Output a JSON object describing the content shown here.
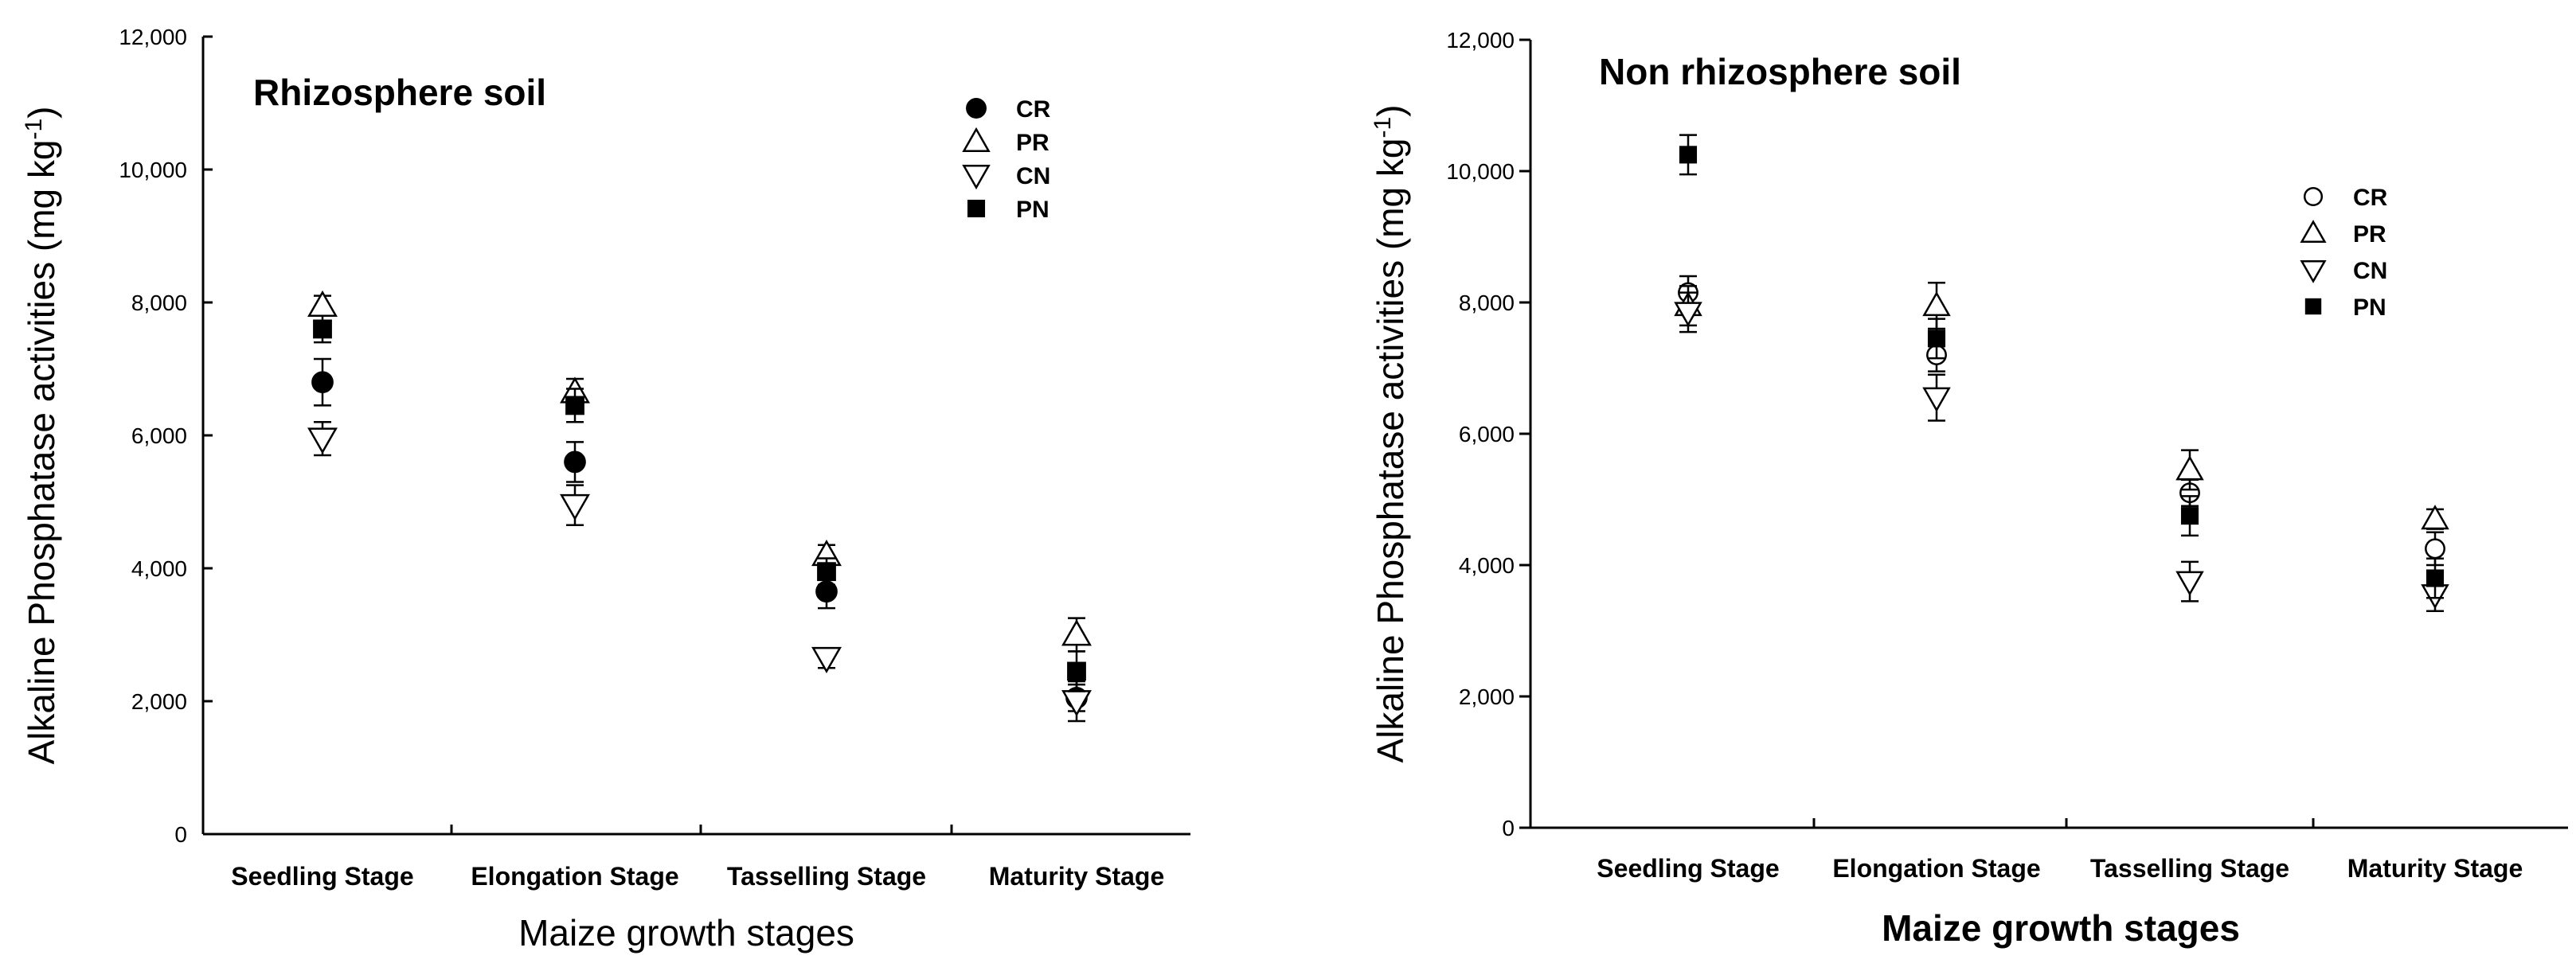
{
  "chart_data": [
    {
      "type": "scatter",
      "title": "Rhizosphere soil",
      "xlabel": "Maize growth stages",
      "ylabel_main": "Alkaline Phosphatase activities (mg kg",
      "ylabel_sup": "-1",
      "ylabel_end": ")",
      "ylim": [
        0,
        12000
      ],
      "yticks": [
        "0",
        "2,000",
        "4,000",
        "6,000",
        "8,000",
        "10,000",
        "12,000"
      ],
      "categories": [
        "Seedling Stage",
        "Elongation Stage",
        "Tasselling Stage",
        "Maturity Stage"
      ],
      "legend_position": "top-right",
      "series": [
        {
          "name": "CR",
          "marker": "filled-circle",
          "values": [
            6800,
            5600,
            3650,
            2050
          ],
          "errors": [
            350,
            300,
            250,
            200
          ]
        },
        {
          "name": "PR",
          "marker": "open-triangle-up",
          "values": [
            7950,
            6650,
            4200,
            3000
          ],
          "errors": [
            150,
            200,
            150,
            250
          ]
        },
        {
          "name": "CN",
          "marker": "open-triangle-down",
          "values": [
            5950,
            4950,
            2650,
            2000
          ],
          "errors": [
            250,
            300,
            150,
            300
          ]
        },
        {
          "name": "PN",
          "marker": "filled-square",
          "values": [
            7600,
            6450,
            3950,
            2450
          ],
          "errors": [
            200,
            250,
            200,
            300
          ]
        }
      ]
    },
    {
      "type": "scatter",
      "title": "Non rhizosphere soil",
      "xlabel": "Maize growth stages",
      "ylabel_main": "Alkaline Phosphatase activities (mg kg",
      "ylabel_sup": "-1",
      "ylabel_end": ")",
      "ylim": [
        0,
        12000
      ],
      "yticks": [
        "0",
        "2,000",
        "4,000",
        "6,000",
        "8,000",
        "10,000",
        "12,000"
      ],
      "categories": [
        "Seedling Stage",
        "Elongation Stage",
        "Tasselling Stage",
        "Maturity Stage"
      ],
      "legend_position": "right",
      "series": [
        {
          "name": "CR",
          "marker": "open-circle",
          "values": [
            8150,
            7200,
            5100,
            4250
          ],
          "errors": [
            250,
            250,
            200,
            250
          ]
        },
        {
          "name": "PR",
          "marker": "open-triangle-up",
          "values": [
            7950,
            7950,
            5450,
            4700
          ],
          "errors": [
            300,
            350,
            300,
            150
          ]
        },
        {
          "name": "CN",
          "marker": "open-triangle-down",
          "values": [
            7850,
            6550,
            3750,
            3550
          ],
          "errors": [
            300,
            350,
            300,
            250
          ]
        },
        {
          "name": "PN",
          "marker": "filled-square",
          "values": [
            10250,
            7450,
            4750,
            3800
          ],
          "errors": [
            300,
            300,
            300,
            300
          ]
        }
      ]
    }
  ]
}
